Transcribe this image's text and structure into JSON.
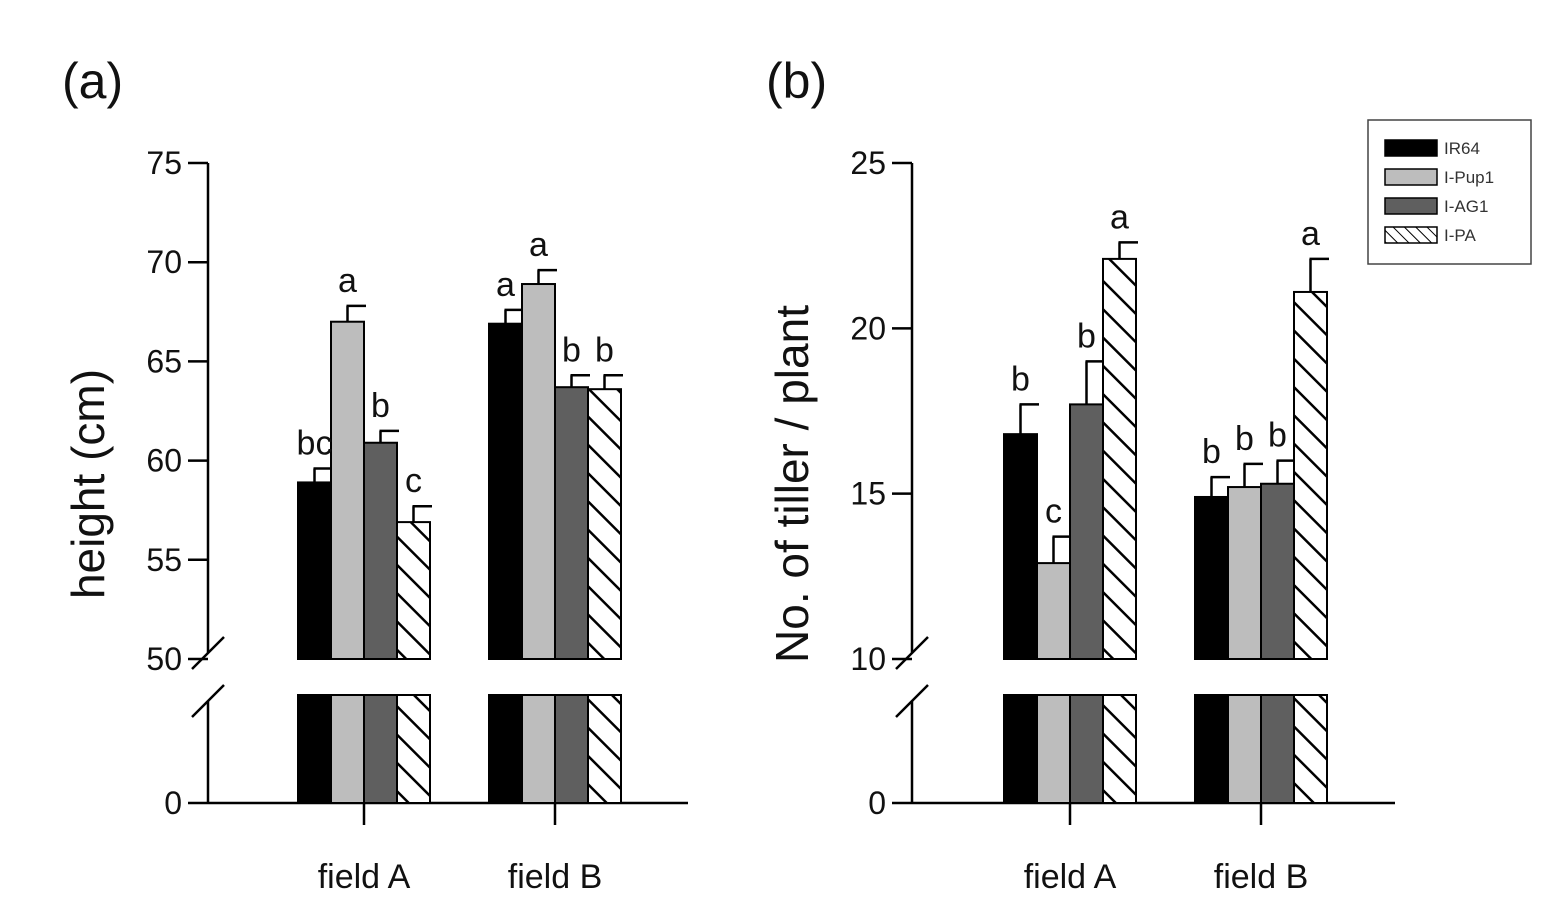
{
  "chart_data": [
    {
      "type": "bar",
      "panel_label": "(a)",
      "ylabel": "height (cm)",
      "categories": [
        "field A",
        "field B"
      ],
      "broken_axis": {
        "lower_ticks": [
          0
        ],
        "upper_range": [
          50,
          75
        ]
      },
      "ylim": [
        0,
        75
      ],
      "yticks": [
        0,
        50,
        55,
        60,
        65,
        70,
        75
      ],
      "series": [
        {
          "name": "IR64",
          "values": [
            58.9,
            66.9
          ],
          "errors": [
            0.7,
            0.7
          ],
          "letters": [
            "bc",
            "a"
          ]
        },
        {
          "name": "I-Pup1",
          "values": [
            67.0,
            68.9
          ],
          "errors": [
            0.8,
            0.7
          ],
          "letters": [
            "a",
            "a"
          ]
        },
        {
          "name": "I-AG1",
          "values": [
            60.9,
            63.7
          ],
          "errors": [
            0.6,
            0.6
          ],
          "letters": [
            "b",
            "b"
          ]
        },
        {
          "name": "I-PA",
          "values": [
            56.9,
            63.6
          ],
          "errors": [
            0.8,
            0.7
          ],
          "letters": [
            "c",
            "b"
          ]
        }
      ],
      "grid": false,
      "legend": "none"
    },
    {
      "type": "bar",
      "panel_label": "(b)",
      "ylabel": "No. of tiller / plant",
      "categories": [
        "field A",
        "field B"
      ],
      "broken_axis": {
        "lower_ticks": [
          0
        ],
        "upper_range": [
          10,
          25
        ]
      },
      "ylim": [
        0,
        25
      ],
      "yticks": [
        0,
        10,
        15,
        20,
        25
      ],
      "series": [
        {
          "name": "IR64",
          "values": [
            16.8,
            14.9
          ],
          "errors": [
            0.9,
            0.6
          ],
          "letters": [
            "b",
            "b"
          ]
        },
        {
          "name": "I-Pup1",
          "values": [
            12.9,
            15.2
          ],
          "errors": [
            0.8,
            0.7
          ],
          "letters": [
            "c",
            "b"
          ]
        },
        {
          "name": "I-AG1",
          "values": [
            17.7,
            15.3
          ],
          "errors": [
            1.3,
            0.7
          ],
          "letters": [
            "b",
            "b"
          ]
        },
        {
          "name": "I-PA",
          "values": [
            22.1,
            21.1
          ],
          "errors": [
            0.5,
            1.0
          ],
          "letters": [
            "a",
            "a"
          ]
        }
      ],
      "grid": false,
      "legend": "top-right"
    }
  ],
  "styles": {
    "IR64": "#000000",
    "I-Pup1": "#bdbdbd",
    "I-AG1": "#5f5f5f",
    "I-PA": "hatched"
  }
}
